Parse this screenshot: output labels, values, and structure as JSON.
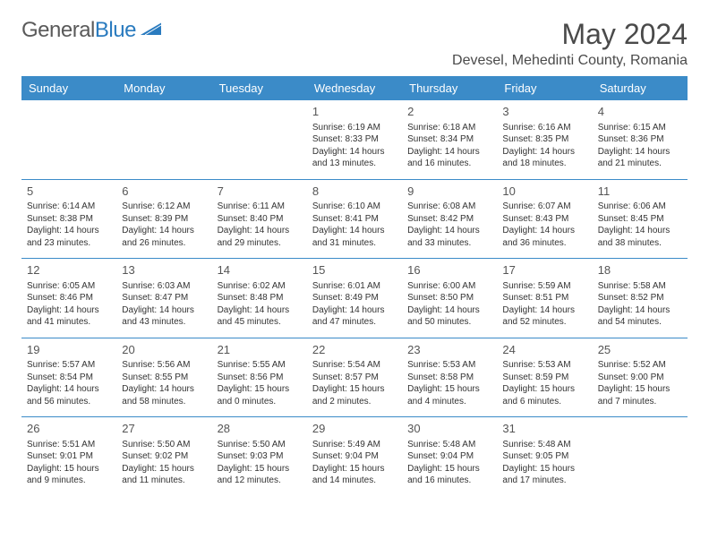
{
  "logo": {
    "text_gray": "General",
    "text_blue": "Blue"
  },
  "title": "May 2024",
  "location": "Devesel, Mehedinti County, Romania",
  "colors": {
    "header_bg": "#3b8bc8",
    "header_text": "#ffffff",
    "border": "#3b8bc8",
    "page_bg": "#ffffff",
    "text": "#333333",
    "daynum": "#555555",
    "title_color": "#4a4a4a",
    "logo_gray": "#5a5a5a",
    "logo_blue": "#2a7bbf"
  },
  "typography": {
    "title_fontsize": 32,
    "location_fontsize": 16,
    "header_fontsize": 13,
    "daynum_fontsize": 13,
    "cell_fontsize": 10,
    "logo_fontsize": 24
  },
  "weekdays": [
    "Sunday",
    "Monday",
    "Tuesday",
    "Wednesday",
    "Thursday",
    "Friday",
    "Saturday"
  ],
  "weeks": [
    [
      null,
      null,
      null,
      {
        "n": "1",
        "sr": "Sunrise: 6:19 AM",
        "ss": "Sunset: 8:33 PM",
        "dl": "Daylight: 14 hours and 13 minutes."
      },
      {
        "n": "2",
        "sr": "Sunrise: 6:18 AM",
        "ss": "Sunset: 8:34 PM",
        "dl": "Daylight: 14 hours and 16 minutes."
      },
      {
        "n": "3",
        "sr": "Sunrise: 6:16 AM",
        "ss": "Sunset: 8:35 PM",
        "dl": "Daylight: 14 hours and 18 minutes."
      },
      {
        "n": "4",
        "sr": "Sunrise: 6:15 AM",
        "ss": "Sunset: 8:36 PM",
        "dl": "Daylight: 14 hours and 21 minutes."
      }
    ],
    [
      {
        "n": "5",
        "sr": "Sunrise: 6:14 AM",
        "ss": "Sunset: 8:38 PM",
        "dl": "Daylight: 14 hours and 23 minutes."
      },
      {
        "n": "6",
        "sr": "Sunrise: 6:12 AM",
        "ss": "Sunset: 8:39 PM",
        "dl": "Daylight: 14 hours and 26 minutes."
      },
      {
        "n": "7",
        "sr": "Sunrise: 6:11 AM",
        "ss": "Sunset: 8:40 PM",
        "dl": "Daylight: 14 hours and 29 minutes."
      },
      {
        "n": "8",
        "sr": "Sunrise: 6:10 AM",
        "ss": "Sunset: 8:41 PM",
        "dl": "Daylight: 14 hours and 31 minutes."
      },
      {
        "n": "9",
        "sr": "Sunrise: 6:08 AM",
        "ss": "Sunset: 8:42 PM",
        "dl": "Daylight: 14 hours and 33 minutes."
      },
      {
        "n": "10",
        "sr": "Sunrise: 6:07 AM",
        "ss": "Sunset: 8:43 PM",
        "dl": "Daylight: 14 hours and 36 minutes."
      },
      {
        "n": "11",
        "sr": "Sunrise: 6:06 AM",
        "ss": "Sunset: 8:45 PM",
        "dl": "Daylight: 14 hours and 38 minutes."
      }
    ],
    [
      {
        "n": "12",
        "sr": "Sunrise: 6:05 AM",
        "ss": "Sunset: 8:46 PM",
        "dl": "Daylight: 14 hours and 41 minutes."
      },
      {
        "n": "13",
        "sr": "Sunrise: 6:03 AM",
        "ss": "Sunset: 8:47 PM",
        "dl": "Daylight: 14 hours and 43 minutes."
      },
      {
        "n": "14",
        "sr": "Sunrise: 6:02 AM",
        "ss": "Sunset: 8:48 PM",
        "dl": "Daylight: 14 hours and 45 minutes."
      },
      {
        "n": "15",
        "sr": "Sunrise: 6:01 AM",
        "ss": "Sunset: 8:49 PM",
        "dl": "Daylight: 14 hours and 47 minutes."
      },
      {
        "n": "16",
        "sr": "Sunrise: 6:00 AM",
        "ss": "Sunset: 8:50 PM",
        "dl": "Daylight: 14 hours and 50 minutes."
      },
      {
        "n": "17",
        "sr": "Sunrise: 5:59 AM",
        "ss": "Sunset: 8:51 PM",
        "dl": "Daylight: 14 hours and 52 minutes."
      },
      {
        "n": "18",
        "sr": "Sunrise: 5:58 AM",
        "ss": "Sunset: 8:52 PM",
        "dl": "Daylight: 14 hours and 54 minutes."
      }
    ],
    [
      {
        "n": "19",
        "sr": "Sunrise: 5:57 AM",
        "ss": "Sunset: 8:54 PM",
        "dl": "Daylight: 14 hours and 56 minutes."
      },
      {
        "n": "20",
        "sr": "Sunrise: 5:56 AM",
        "ss": "Sunset: 8:55 PM",
        "dl": "Daylight: 14 hours and 58 minutes."
      },
      {
        "n": "21",
        "sr": "Sunrise: 5:55 AM",
        "ss": "Sunset: 8:56 PM",
        "dl": "Daylight: 15 hours and 0 minutes."
      },
      {
        "n": "22",
        "sr": "Sunrise: 5:54 AM",
        "ss": "Sunset: 8:57 PM",
        "dl": "Daylight: 15 hours and 2 minutes."
      },
      {
        "n": "23",
        "sr": "Sunrise: 5:53 AM",
        "ss": "Sunset: 8:58 PM",
        "dl": "Daylight: 15 hours and 4 minutes."
      },
      {
        "n": "24",
        "sr": "Sunrise: 5:53 AM",
        "ss": "Sunset: 8:59 PM",
        "dl": "Daylight: 15 hours and 6 minutes."
      },
      {
        "n": "25",
        "sr": "Sunrise: 5:52 AM",
        "ss": "Sunset: 9:00 PM",
        "dl": "Daylight: 15 hours and 7 minutes."
      }
    ],
    [
      {
        "n": "26",
        "sr": "Sunrise: 5:51 AM",
        "ss": "Sunset: 9:01 PM",
        "dl": "Daylight: 15 hours and 9 minutes."
      },
      {
        "n": "27",
        "sr": "Sunrise: 5:50 AM",
        "ss": "Sunset: 9:02 PM",
        "dl": "Daylight: 15 hours and 11 minutes."
      },
      {
        "n": "28",
        "sr": "Sunrise: 5:50 AM",
        "ss": "Sunset: 9:03 PM",
        "dl": "Daylight: 15 hours and 12 minutes."
      },
      {
        "n": "29",
        "sr": "Sunrise: 5:49 AM",
        "ss": "Sunset: 9:04 PM",
        "dl": "Daylight: 15 hours and 14 minutes."
      },
      {
        "n": "30",
        "sr": "Sunrise: 5:48 AM",
        "ss": "Sunset: 9:04 PM",
        "dl": "Daylight: 15 hours and 16 minutes."
      },
      {
        "n": "31",
        "sr": "Sunrise: 5:48 AM",
        "ss": "Sunset: 9:05 PM",
        "dl": "Daylight: 15 hours and 17 minutes."
      },
      null
    ]
  ]
}
